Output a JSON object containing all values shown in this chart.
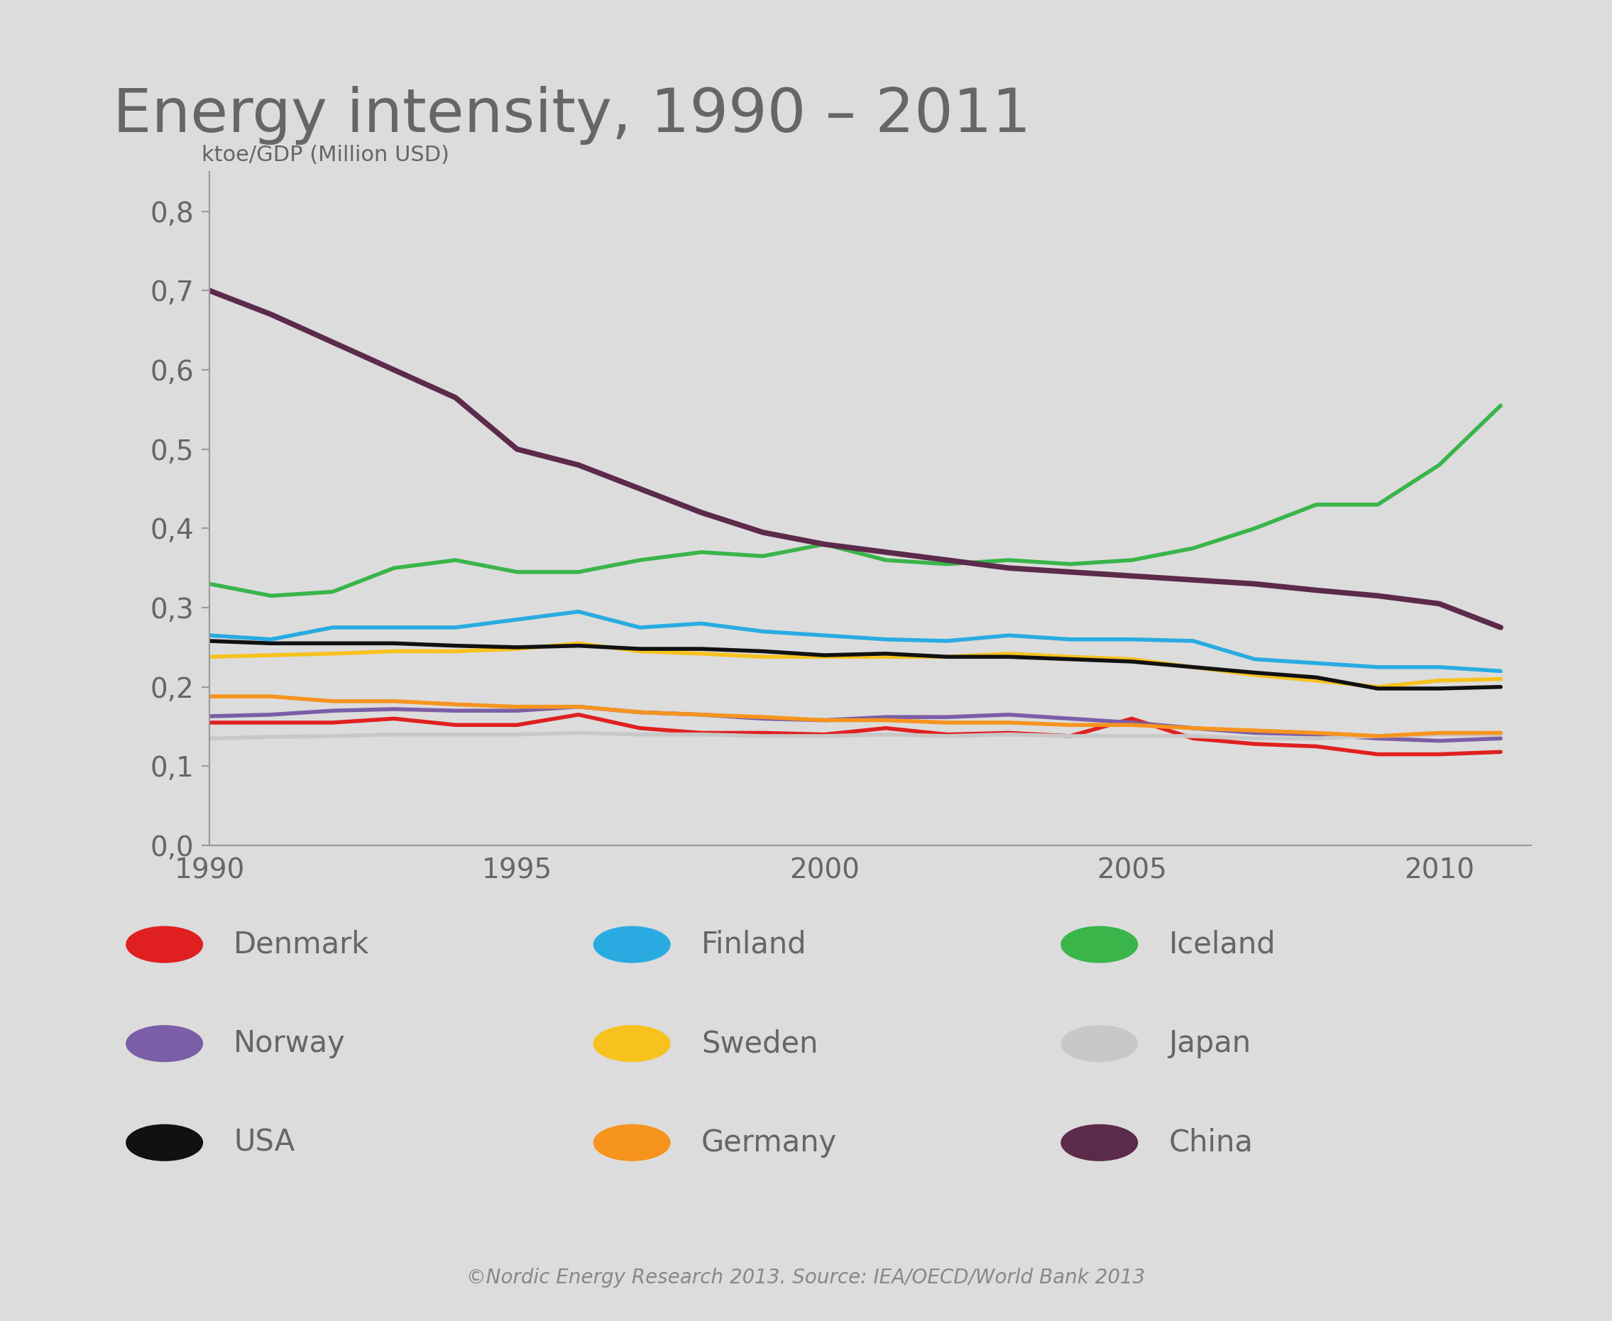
{
  "title": "Energy intensity, 1990 – 2011",
  "ylabel": "ktoe/GDP (Million USD)",
  "background_color": "#dcdcdc",
  "years": [
    1990,
    1991,
    1992,
    1993,
    1994,
    1995,
    1996,
    1997,
    1998,
    1999,
    2000,
    2001,
    2002,
    2003,
    2004,
    2005,
    2006,
    2007,
    2008,
    2009,
    2010,
    2011
  ],
  "series": {
    "Denmark": {
      "color": "#e02020",
      "linewidth": 4.0,
      "values": [
        0.155,
        0.155,
        0.155,
        0.16,
        0.152,
        0.152,
        0.165,
        0.148,
        0.142,
        0.142,
        0.14,
        0.148,
        0.14,
        0.142,
        0.138,
        0.16,
        0.135,
        0.128,
        0.125,
        0.115,
        0.115,
        0.118
      ]
    },
    "Finland": {
      "color": "#29abe2",
      "linewidth": 4.0,
      "values": [
        0.265,
        0.26,
        0.275,
        0.275,
        0.275,
        0.285,
        0.295,
        0.275,
        0.28,
        0.27,
        0.265,
        0.26,
        0.258,
        0.265,
        0.26,
        0.26,
        0.258,
        0.235,
        0.23,
        0.225,
        0.225,
        0.22
      ]
    },
    "Iceland": {
      "color": "#39b54a",
      "linewidth": 4.0,
      "values": [
        0.33,
        0.315,
        0.32,
        0.35,
        0.36,
        0.345,
        0.345,
        0.36,
        0.37,
        0.365,
        0.38,
        0.36,
        0.355,
        0.36,
        0.355,
        0.36,
        0.375,
        0.4,
        0.43,
        0.43,
        0.48,
        0.555
      ]
    },
    "Norway": {
      "color": "#7b5ea7",
      "linewidth": 4.0,
      "values": [
        0.163,
        0.165,
        0.17,
        0.172,
        0.17,
        0.17,
        0.175,
        0.168,
        0.165,
        0.16,
        0.158,
        0.162,
        0.162,
        0.165,
        0.16,
        0.155,
        0.148,
        0.142,
        0.14,
        0.135,
        0.132,
        0.135
      ]
    },
    "Sweden": {
      "color": "#f7c21e",
      "linewidth": 4.0,
      "values": [
        0.238,
        0.24,
        0.242,
        0.245,
        0.245,
        0.248,
        0.255,
        0.245,
        0.242,
        0.238,
        0.238,
        0.238,
        0.238,
        0.242,
        0.238,
        0.235,
        0.225,
        0.215,
        0.208,
        0.2,
        0.208,
        0.21
      ]
    },
    "Japan": {
      "color": "#c8c8c8",
      "linewidth": 4.0,
      "values": [
        0.135,
        0.137,
        0.138,
        0.14,
        0.14,
        0.14,
        0.142,
        0.14,
        0.14,
        0.138,
        0.138,
        0.14,
        0.138,
        0.14,
        0.138,
        0.138,
        0.138,
        0.135,
        0.135,
        0.138,
        0.14,
        0.14
      ]
    },
    "USA": {
      "color": "#111111",
      "linewidth": 4.0,
      "values": [
        0.258,
        0.255,
        0.255,
        0.255,
        0.252,
        0.25,
        0.252,
        0.248,
        0.248,
        0.245,
        0.24,
        0.242,
        0.238,
        0.238,
        0.235,
        0.232,
        0.225,
        0.218,
        0.212,
        0.198,
        0.198,
        0.2
      ]
    },
    "Germany": {
      "color": "#f7941d",
      "linewidth": 4.0,
      "values": [
        0.188,
        0.188,
        0.182,
        0.182,
        0.178,
        0.175,
        0.175,
        0.168,
        0.165,
        0.162,
        0.158,
        0.158,
        0.155,
        0.155,
        0.152,
        0.152,
        0.148,
        0.145,
        0.142,
        0.138,
        0.142,
        0.142
      ]
    },
    "China": {
      "color": "#5c2a4a",
      "linewidth": 5.5,
      "values": [
        0.7,
        0.67,
        0.635,
        0.6,
        0.565,
        0.5,
        0.48,
        0.45,
        0.42,
        0.395,
        0.38,
        0.37,
        0.36,
        0.35,
        0.345,
        0.34,
        0.335,
        0.33,
        0.322,
        0.315,
        0.305,
        0.275
      ]
    }
  },
  "yticks": [
    0.0,
    0.1,
    0.2,
    0.3,
    0.4,
    0.5,
    0.6,
    0.7,
    0.8
  ],
  "ylim": [
    0.0,
    0.85
  ],
  "xticks": [
    1990,
    1995,
    2000,
    2005,
    2010
  ],
  "xlim": [
    1990,
    2011.5
  ],
  "footer": "©Nordic Energy Research 2013. Source: IEA/OECD/World Bank 2013",
  "legend_items": [
    [
      "Denmark",
      "#e02020"
    ],
    [
      "Finland",
      "#29abe2"
    ],
    [
      "Iceland",
      "#39b54a"
    ],
    [
      "Norway",
      "#7b5ea7"
    ],
    [
      "Sweden",
      "#f7c21e"
    ],
    [
      "Japan",
      "#c8c8c8"
    ],
    [
      "USA",
      "#111111"
    ],
    [
      "Germany",
      "#f7941d"
    ],
    [
      "China",
      "#5c2a4a"
    ]
  ]
}
